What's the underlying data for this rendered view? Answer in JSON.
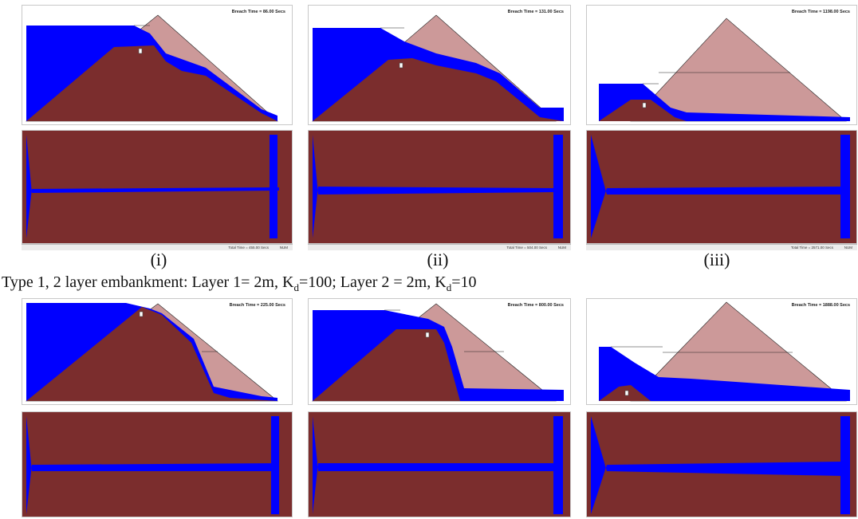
{
  "colors": {
    "water": "#0000ff",
    "eroded": "#7b2d2d",
    "dam": "#cc9999",
    "outline": "#222222"
  },
  "breach_times": {
    "r1_i": "Breach Time = 86.00 Secs",
    "r1_ii": "Breach Time = 131.00 Secs",
    "r1_iii": "Breach Time = 1198.00 Secs",
    "r2_i": "Breach Time = 225.00 Secs",
    "r2_ii": "Breach Time = 800.00 Secs",
    "r2_iii": "Breach Time = 1888.00 Secs"
  },
  "labels": {
    "i": "(i)",
    "ii": "(ii)",
    "iii": "(iii)"
  },
  "caption": {
    "part1": "Type 1, 2 layer embankment: Layer 1= 2m, K",
    "sub1": "d",
    "part2": "=100; Layer 2 = 2m, K",
    "sub2": "d",
    "part3": "=10"
  },
  "status": {
    "i_time": "Total Time = 455.00 Secs",
    "ii_time": "Total Time = 504.00 Secs",
    "iii_time": "Total Time = 2571.00 Secs",
    "num": "NUM"
  },
  "icons": {
    "node_marker": "node-marker-icon"
  }
}
